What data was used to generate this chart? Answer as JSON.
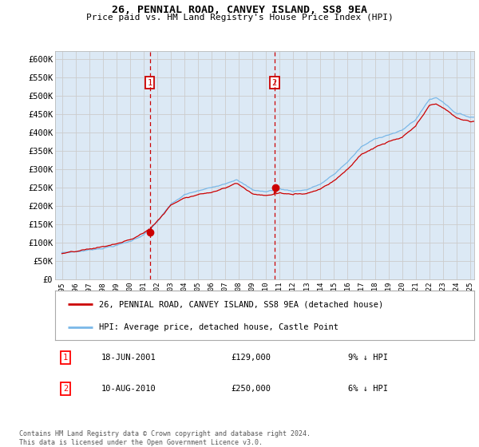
{
  "title": "26, PENNIAL ROAD, CANVEY ISLAND, SS8 9EA",
  "subtitle": "Price paid vs. HM Land Registry's House Price Index (HPI)",
  "ylim": [
    0,
    620000
  ],
  "yticks": [
    0,
    50000,
    100000,
    150000,
    200000,
    250000,
    300000,
    350000,
    400000,
    450000,
    500000,
    550000,
    600000
  ],
  "background_color": "#ffffff",
  "plot_bg_color": "#dce9f5",
  "grid_color": "#cccccc",
  "hpi_line_color": "#7ab8e8",
  "price_line_color": "#cc0000",
  "vline_color": "#cc0000",
  "annotation_box_color": "#cc0000",
  "sale1_date": "18-JUN-2001",
  "sale1_price": 129000,
  "sale1_label": "1",
  "sale1_note": "9% ↓ HPI",
  "sale2_date": "10-AUG-2010",
  "sale2_price": 250000,
  "sale2_label": "2",
  "sale2_note": "6% ↓ HPI",
  "legend_line1": "26, PENNIAL ROAD, CANVEY ISLAND, SS8 9EA (detached house)",
  "legend_line2": "HPI: Average price, detached house, Castle Point",
  "footnote": "Contains HM Land Registry data © Crown copyright and database right 2024.\nThis data is licensed under the Open Government Licence v3.0.",
  "xstart_year": 1995,
  "xend_year": 2025
}
